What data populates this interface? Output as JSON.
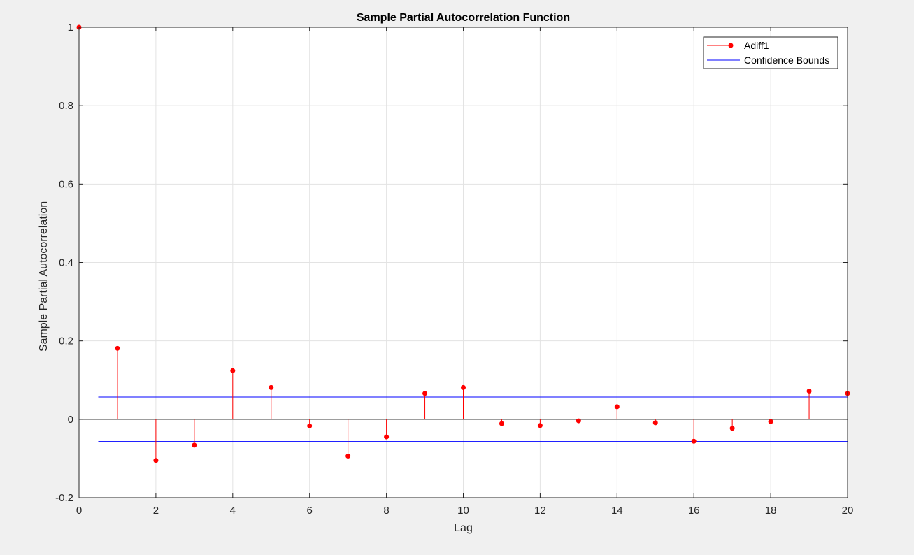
{
  "chart_data": {
    "type": "stem",
    "title": "Sample Partial Autocorrelation Function",
    "xlabel": "Lag",
    "ylabel": "Sample Partial Autocorrelation",
    "xlim": [
      0,
      20
    ],
    "ylim": [
      -0.2,
      1
    ],
    "xticks": [
      0,
      2,
      4,
      6,
      8,
      10,
      12,
      14,
      16,
      18,
      20
    ],
    "xtick_labels": [
      "0",
      "2",
      "4",
      "6",
      "8",
      "10",
      "12",
      "14",
      "16",
      "18",
      "20"
    ],
    "yticks": [
      -0.2,
      0,
      0.2,
      0.4,
      0.6,
      0.8,
      1
    ],
    "ytick_labels": [
      "-0.2",
      "0",
      "0.2",
      "0.4",
      "0.6",
      "0.8",
      "1"
    ],
    "grid": true,
    "legend_position": "top-right",
    "series": [
      {
        "name": "Adiff1",
        "kind": "stem",
        "color": "#ff0000",
        "x": [
          0,
          1,
          2,
          3,
          4,
          5,
          6,
          7,
          8,
          9,
          10,
          11,
          12,
          13,
          14,
          15,
          16,
          17,
          18,
          19,
          20
        ],
        "y": [
          1.0,
          0.181,
          -0.105,
          -0.066,
          0.124,
          0.081,
          -0.017,
          -0.094,
          -0.045,
          0.066,
          0.081,
          -0.011,
          -0.016,
          -0.004,
          0.032,
          -0.009,
          -0.056,
          -0.023,
          -0.006,
          0.072,
          0.066
        ]
      },
      {
        "name": "Confidence Bounds",
        "kind": "hlines",
        "color": "#0000ff",
        "x_range": [
          0.5,
          20
        ],
        "y": [
          0.0567,
          -0.0567
        ]
      }
    ],
    "zero_line_color": "#000000"
  }
}
